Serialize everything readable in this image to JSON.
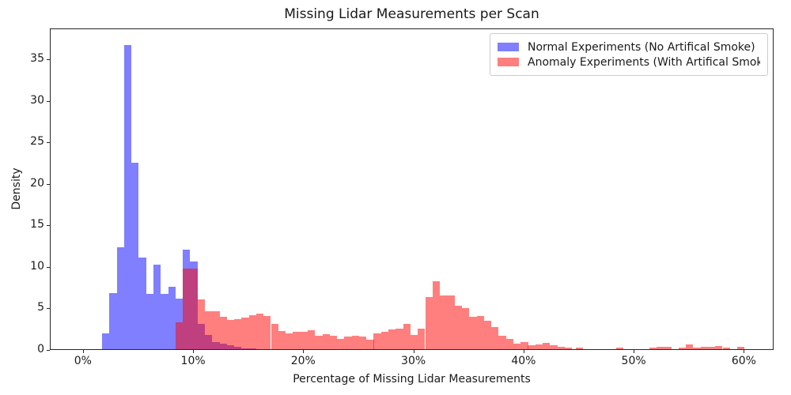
{
  "chart_data": {
    "type": "bar",
    "subtype": "histogram",
    "title": "Missing Lidar Measurements per Scan",
    "xlabel": "Percentage of Missing Lidar Measurements",
    "ylabel": "Density",
    "xlim": [
      -3.0,
      62.7
    ],
    "ylim": [
      0,
      38.7
    ],
    "bin_width": 0.667,
    "grid": false,
    "legend_position": "upper right",
    "x_ticks": [
      {
        "value": 0,
        "label": "0%"
      },
      {
        "value": 10,
        "label": "10%"
      },
      {
        "value": 20,
        "label": "20%"
      },
      {
        "value": 30,
        "label": "30%"
      },
      {
        "value": 40,
        "label": "40%"
      },
      {
        "value": 50,
        "label": "50%"
      },
      {
        "value": 60,
        "label": "60%"
      }
    ],
    "y_ticks": [
      0,
      5,
      10,
      15,
      20,
      25,
      30,
      35
    ],
    "series": [
      {
        "name": "Normal Experiments (No Artifical Smoke)",
        "slug": "normal",
        "color": "#0000ff80",
        "color_on_white_hex": "#8080fa",
        "bars": [
          [
            1.67,
            1.9
          ],
          [
            2.33,
            6.8
          ],
          [
            3.0,
            12.3
          ],
          [
            3.67,
            36.6
          ],
          [
            4.33,
            22.4
          ],
          [
            5.0,
            11.0
          ],
          [
            5.67,
            6.7
          ],
          [
            6.33,
            10.2
          ],
          [
            7.0,
            6.7
          ],
          [
            7.67,
            7.5
          ],
          [
            8.33,
            6.1
          ],
          [
            9.0,
            12.0
          ],
          [
            9.67,
            10.6
          ],
          [
            10.33,
            3.0
          ],
          [
            11.0,
            1.7
          ],
          [
            11.67,
            0.9
          ],
          [
            12.33,
            0.7
          ],
          [
            13.0,
            0.45
          ],
          [
            13.67,
            0.25
          ],
          [
            14.33,
            0.12
          ],
          [
            15.0,
            0.08
          ]
        ]
      },
      {
        "name": "Anomaly Experiments (With Artifical Smoke)",
        "slug": "anomaly",
        "color": "#ff000080",
        "color_on_white_hex": "#ff8080",
        "overlap_color_hex": "#bf407f",
        "bars": [
          [
            8.33,
            3.2
          ],
          [
            9.0,
            9.7
          ],
          [
            9.67,
            9.7
          ],
          [
            10.33,
            6.0
          ],
          [
            11.0,
            4.6
          ],
          [
            11.67,
            4.6
          ],
          [
            12.33,
            3.9
          ],
          [
            13.0,
            3.5
          ],
          [
            13.67,
            3.6
          ],
          [
            14.33,
            3.85
          ],
          [
            15.0,
            4.1
          ],
          [
            15.67,
            4.25
          ],
          [
            16.33,
            4.0
          ],
          [
            17.0,
            3.0
          ],
          [
            17.67,
            2.2
          ],
          [
            18.33,
            1.9
          ],
          [
            19.0,
            2.1
          ],
          [
            19.67,
            2.05
          ],
          [
            20.33,
            2.25
          ],
          [
            21.0,
            1.6
          ],
          [
            21.67,
            1.85
          ],
          [
            22.33,
            1.65
          ],
          [
            23.0,
            1.25
          ],
          [
            23.67,
            1.5
          ],
          [
            24.33,
            1.65
          ],
          [
            25.0,
            1.5
          ],
          [
            25.67,
            1.1
          ],
          [
            26.33,
            1.9
          ],
          [
            27.0,
            2.05
          ],
          [
            27.67,
            2.35
          ],
          [
            28.33,
            2.45
          ],
          [
            29.0,
            3.0
          ],
          [
            29.67,
            1.7
          ],
          [
            30.33,
            2.5
          ],
          [
            31.0,
            6.3
          ],
          [
            31.67,
            8.2
          ],
          [
            32.33,
            6.5
          ],
          [
            33.0,
            6.5
          ],
          [
            33.67,
            5.2
          ],
          [
            34.33,
            4.9
          ],
          [
            35.0,
            3.9
          ],
          [
            35.67,
            4.0
          ],
          [
            36.33,
            3.45
          ],
          [
            37.0,
            2.7
          ],
          [
            37.67,
            1.6
          ],
          [
            38.33,
            1.25
          ],
          [
            39.0,
            0.7
          ],
          [
            39.67,
            0.9
          ],
          [
            40.33,
            0.5
          ],
          [
            41.0,
            0.55
          ],
          [
            41.67,
            0.8
          ],
          [
            42.33,
            0.5
          ],
          [
            43.0,
            0.3
          ],
          [
            43.67,
            0.15
          ],
          [
            44.67,
            0.2
          ],
          [
            48.33,
            0.15
          ],
          [
            51.33,
            0.2
          ],
          [
            52.0,
            0.25
          ],
          [
            52.67,
            0.3
          ],
          [
            54.0,
            0.15
          ],
          [
            54.67,
            0.55
          ],
          [
            55.33,
            0.2
          ],
          [
            56.0,
            0.25
          ],
          [
            56.67,
            0.25
          ],
          [
            57.33,
            0.35
          ],
          [
            58.0,
            0.2
          ],
          [
            59.33,
            0.3
          ]
        ]
      }
    ]
  }
}
